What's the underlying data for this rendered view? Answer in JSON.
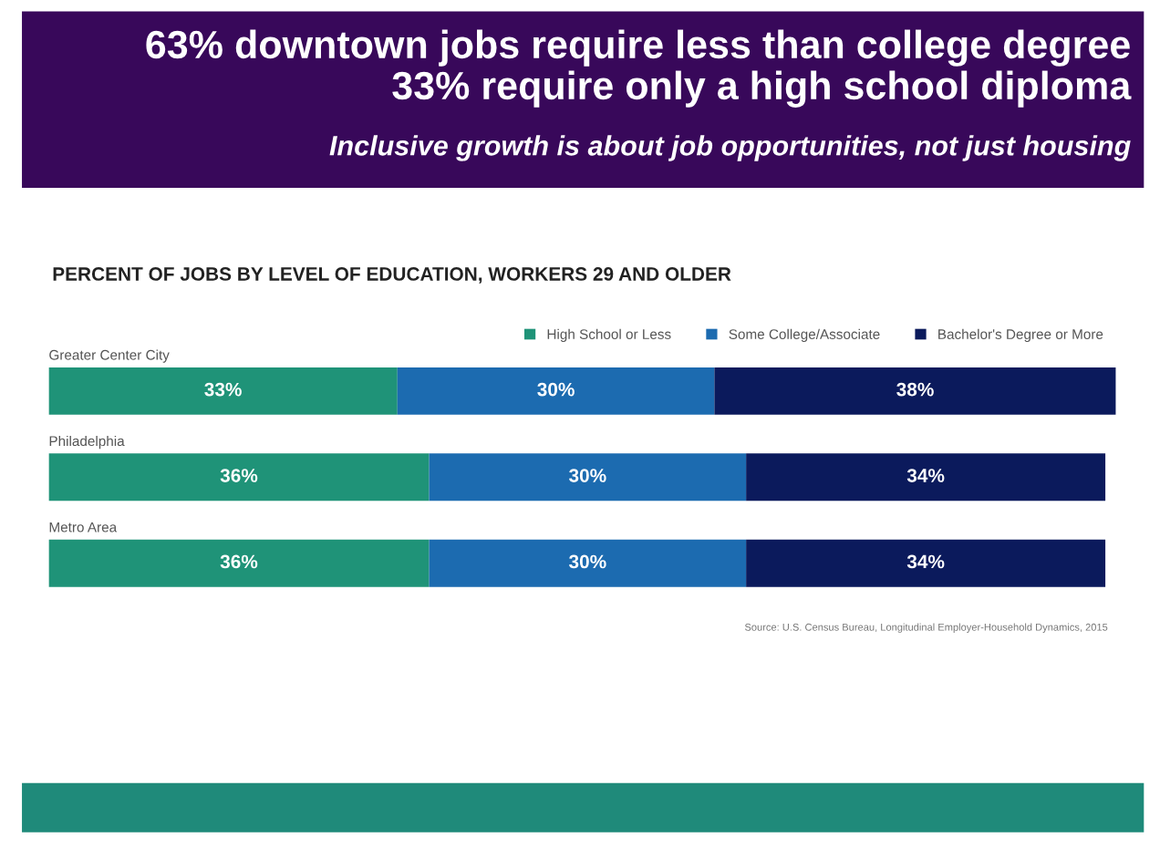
{
  "chart_data": {
    "type": "bar",
    "orientation": "horizontal",
    "stacked": true,
    "legend": "top right",
    "title": "63% downtown jobs require less than college degree\n33% require only a high school diploma",
    "subtitle": "Inclusive growth is about job opportunities, not just housing",
    "xlabel": "PERCENT OF JOBS BY LEVEL OF EDUCATION, WORKERS 29 AND OLDER",
    "categories": [
      "Greater Center City",
      "Philadelphia",
      "Metro Area"
    ],
    "series": [
      {
        "name": "High School or Less",
        "color": "#1f9378",
        "values": [
          33,
          36,
          36
        ],
        "value_labels": [
          "33%",
          "36%",
          "36%"
        ]
      },
      {
        "name": "Some College/Associate",
        "color": "#1c6bb0",
        "values": [
          30,
          30,
          30
        ],
        "value_labels": [
          "30%",
          "30%",
          "30%"
        ]
      },
      {
        "name": "Bachelor's Degree or More",
        "color": "#0b1a5c",
        "values": [
          38,
          34,
          34
        ],
        "value_labels": [
          "38%",
          "34%",
          "34%"
        ]
      }
    ],
    "annotations": [
      "Source: U.S. Census Bureau, Longitudinal Employer-Household Dynamics, 2015"
    ]
  }
}
